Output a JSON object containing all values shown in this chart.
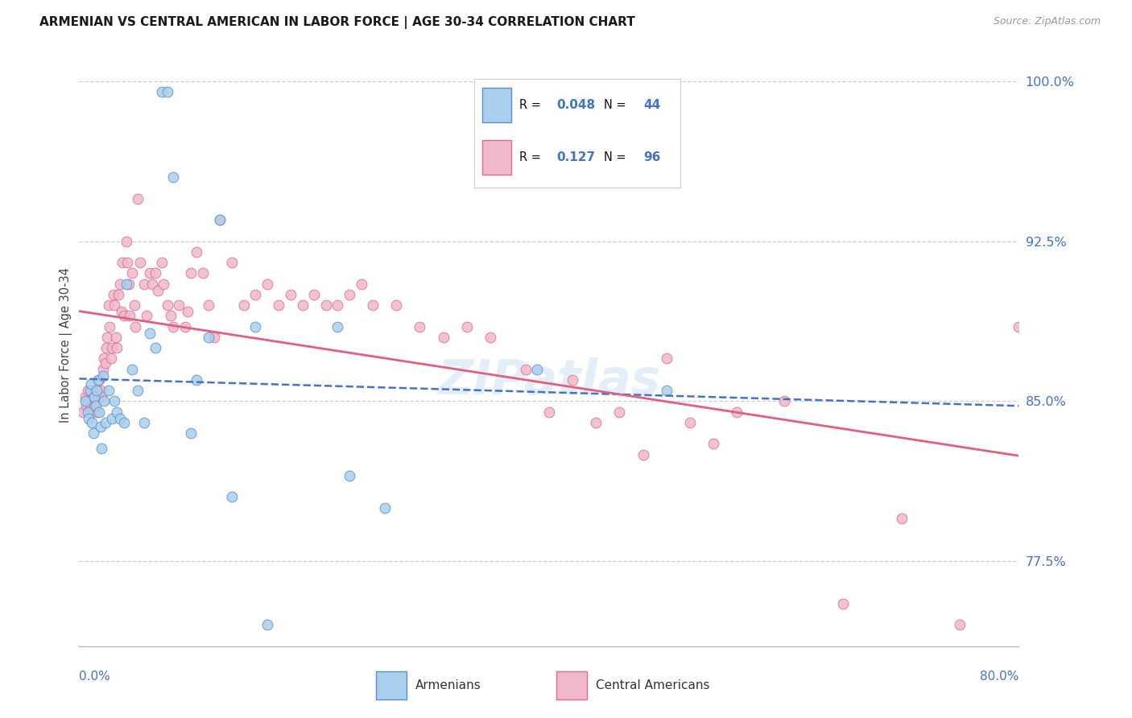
{
  "title": "ARMENIAN VS CENTRAL AMERICAN IN LABOR FORCE | AGE 30-34 CORRELATION CHART",
  "source": "Source: ZipAtlas.com",
  "ylabel": "In Labor Force | Age 30-34",
  "xmin": 0.0,
  "xmax": 0.8,
  "ymin": 73.5,
  "ymax": 101.8,
  "R_armenian": 0.048,
  "N_armenian": 44,
  "R_central": 0.127,
  "N_central": 96,
  "color_armenian_fill": "#aacfee",
  "color_armenian_edge": "#5b8ec4",
  "color_central_fill": "#f0b8cb",
  "color_central_edge": "#d87090",
  "color_armenian_line": "#4472c4",
  "color_central_line": "#e06080",
  "watermark": "ZIPatlas",
  "ytick_vals": [
    77.5,
    85.0,
    92.5,
    100.0
  ],
  "ytick_labels": [
    "77.5%",
    "85.0%",
    "92.5%",
    "100.0%"
  ],
  "armenian_x": [
    0.005,
    0.007,
    0.008,
    0.009,
    0.01,
    0.011,
    0.012,
    0.013,
    0.014,
    0.015,
    0.016,
    0.017,
    0.018,
    0.019,
    0.02,
    0.021,
    0.022,
    0.025,
    0.028,
    0.03,
    0.032,
    0.035,
    0.038,
    0.04,
    0.045,
    0.05,
    0.055,
    0.06,
    0.065,
    0.07,
    0.075,
    0.08,
    0.095,
    0.1,
    0.11,
    0.12,
    0.13,
    0.15,
    0.16,
    0.22,
    0.23,
    0.26,
    0.39,
    0.5
  ],
  "armenian_y": [
    85.0,
    84.5,
    84.2,
    85.5,
    85.8,
    84.0,
    83.5,
    85.2,
    84.8,
    85.5,
    86.0,
    84.5,
    83.8,
    82.8,
    86.2,
    85.0,
    84.0,
    85.5,
    84.2,
    85.0,
    84.5,
    84.2,
    84.0,
    90.5,
    86.5,
    85.5,
    84.0,
    88.2,
    87.5,
    99.5,
    99.5,
    95.5,
    83.5,
    86.0,
    88.0,
    93.5,
    80.5,
    88.5,
    74.5,
    88.5,
    81.5,
    80.0,
    86.5,
    85.5
  ],
  "central_x": [
    0.003,
    0.005,
    0.006,
    0.007,
    0.008,
    0.009,
    0.01,
    0.011,
    0.012,
    0.013,
    0.014,
    0.015,
    0.016,
    0.017,
    0.018,
    0.019,
    0.02,
    0.021,
    0.022,
    0.023,
    0.024,
    0.025,
    0.026,
    0.027,
    0.028,
    0.029,
    0.03,
    0.031,
    0.032,
    0.033,
    0.035,
    0.036,
    0.037,
    0.038,
    0.04,
    0.041,
    0.042,
    0.043,
    0.045,
    0.047,
    0.048,
    0.05,
    0.052,
    0.055,
    0.057,
    0.06,
    0.062,
    0.065,
    0.067,
    0.07,
    0.072,
    0.075,
    0.078,
    0.08,
    0.085,
    0.09,
    0.092,
    0.095,
    0.1,
    0.105,
    0.11,
    0.115,
    0.12,
    0.13,
    0.14,
    0.15,
    0.16,
    0.17,
    0.18,
    0.19,
    0.2,
    0.21,
    0.22,
    0.23,
    0.24,
    0.25,
    0.27,
    0.29,
    0.31,
    0.33,
    0.35,
    0.38,
    0.4,
    0.42,
    0.44,
    0.46,
    0.48,
    0.5,
    0.52,
    0.54,
    0.56,
    0.6,
    0.65,
    0.7,
    0.75,
    0.8
  ],
  "central_y": [
    84.5,
    85.2,
    84.8,
    85.5,
    85.0,
    84.5,
    84.8,
    85.5,
    85.2,
    84.8,
    85.0,
    84.5,
    85.2,
    86.0,
    85.5,
    85.2,
    86.5,
    87.0,
    86.8,
    87.5,
    88.0,
    89.5,
    88.5,
    87.0,
    87.5,
    90.0,
    89.5,
    88.0,
    87.5,
    90.0,
    90.5,
    89.2,
    91.5,
    89.0,
    92.5,
    91.5,
    90.5,
    89.0,
    91.0,
    89.5,
    88.5,
    94.5,
    91.5,
    90.5,
    89.0,
    91.0,
    90.5,
    91.0,
    90.2,
    91.5,
    90.5,
    89.5,
    89.0,
    88.5,
    89.5,
    88.5,
    89.2,
    91.0,
    92.0,
    91.0,
    89.5,
    88.0,
    93.5,
    91.5,
    89.5,
    90.0,
    90.5,
    89.5,
    90.0,
    89.5,
    90.0,
    89.5,
    89.5,
    90.0,
    90.5,
    89.5,
    89.5,
    88.5,
    88.0,
    88.5,
    88.0,
    86.5,
    84.5,
    86.0,
    84.0,
    84.5,
    82.5,
    87.0,
    84.0,
    83.0,
    84.5,
    85.0,
    75.5,
    79.5,
    74.5,
    88.5
  ],
  "grid_color": "#ccccdd",
  "spine_color": "#aaaaaa"
}
